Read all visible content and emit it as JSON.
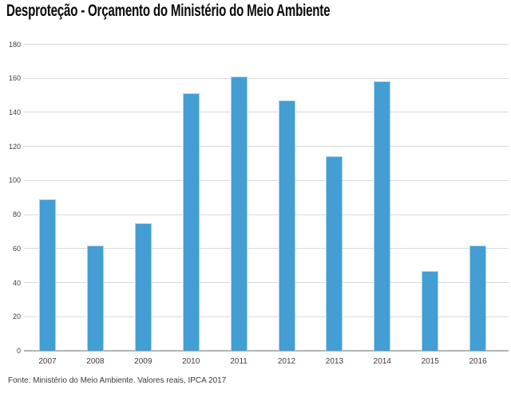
{
  "header": {
    "title": "Desproteção - Orçamento do Ministério do Meio Ambiente"
  },
  "footer": {
    "source": "Fonte: Ministério do Meio Ambiente. Valores reais, IPCA 2017"
  },
  "colors": {
    "bar_fill": "#429ED3",
    "bar_border": "#A9D3EC",
    "gridline": "#D9D9D9",
    "axis": "#B3B3B3",
    "tick_text": "#3D3D3D",
    "title_text": "#0A0A0A",
    "background": "#FFFFFF"
  },
  "chart_data": {
    "type": "bar",
    "title": "Desproteção - Orçamento do Ministério do Meio Ambiente",
    "categories": [
      "2007",
      "2008",
      "2009",
      "2010",
      "2011",
      "2012",
      "2013",
      "2014",
      "2015",
      "2016"
    ],
    "values": [
      89,
      62,
      75,
      151,
      161,
      147,
      114,
      158,
      47,
      62
    ],
    "xlabel": "",
    "ylabel": "",
    "ylim": [
      0,
      180
    ],
    "ytick_step": 20,
    "grid": true,
    "legend": false,
    "source_note": "Fonte: Ministério do Meio Ambiente. Valores reais, IPCA 2017"
  }
}
